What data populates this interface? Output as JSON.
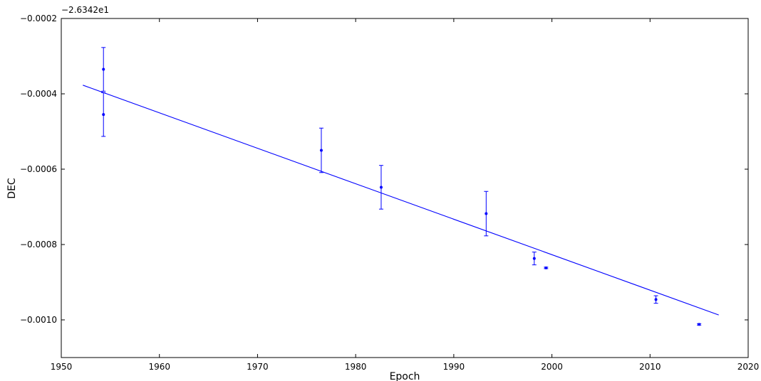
{
  "chart_data": {
    "type": "scatter",
    "title": "",
    "xlabel": "Epoch",
    "ylabel": "DEC",
    "offset_text": "−2.6342e1",
    "xlim": [
      1950,
      2020
    ],
    "ylim": [
      -0.0011,
      -0.0002
    ],
    "xticks": [
      1950,
      1960,
      1970,
      1980,
      1990,
      2000,
      2010,
      2020
    ],
    "xtick_labels": [
      "1950",
      "1960",
      "1970",
      "1980",
      "1990",
      "2000",
      "2010",
      "2020"
    ],
    "yticks": [
      -0.001,
      -0.0008,
      -0.0006,
      -0.0004,
      -0.0002
    ],
    "ytick_labels": [
      "−0.0010",
      "−0.0008",
      "−0.0006",
      "−0.0004",
      "−0.0002"
    ],
    "grid": false,
    "legend": "none",
    "series": [
      {
        "kind": "errorbar",
        "color": "#0000ff",
        "points": [
          {
            "x": 1954.3,
            "y": -0.000335,
            "yerr": 5.8e-05
          },
          {
            "x": 1954.3,
            "y": -0.000455,
            "yerr": 5.8e-05
          },
          {
            "x": 1976.5,
            "y": -0.00055,
            "yerr": 5.9e-05
          },
          {
            "x": 1982.6,
            "y": -0.000648,
            "yerr": 5.8e-05
          },
          {
            "x": 1993.3,
            "y": -0.000718,
            "yerr": 5.9e-05
          },
          {
            "x": 1998.2,
            "y": -0.000837,
            "yerr": 1.7e-05
          },
          {
            "x": 1999.4,
            "y": -0.000862,
            "yerr": 2e-06
          },
          {
            "x": 2010.6,
            "y": -0.000946,
            "yerr": 1e-05
          },
          {
            "x": 2015.0,
            "y": -0.001012,
            "yerr": 2e-06
          }
        ]
      },
      {
        "kind": "fit-line",
        "color": "#0000ff",
        "x": [
          1952.2,
          2017.0
        ],
        "y": [
          -0.000377,
          -0.000987
        ]
      }
    ]
  }
}
